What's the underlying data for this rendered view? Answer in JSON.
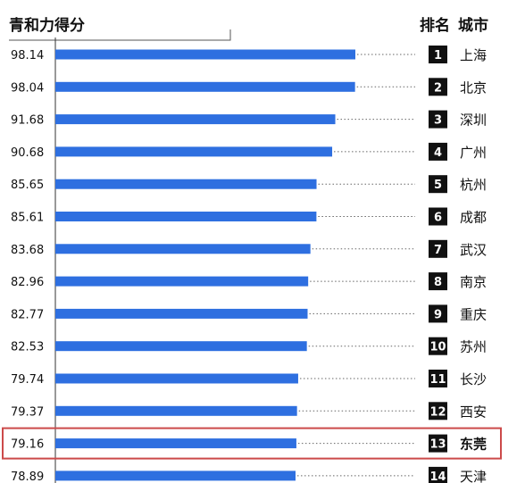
{
  "chart_data": {
    "type": "bar",
    "title": "青和力得分",
    "rank_header": "排名",
    "city_header": "城市",
    "orientation": "horizontal",
    "categories": [
      "上海",
      "北京",
      "深圳",
      "广州",
      "杭州",
      "成都",
      "武汉",
      "南京",
      "重庆",
      "苏州",
      "长沙",
      "西安",
      "东莞",
      "天津"
    ],
    "ranks": [
      "1",
      "2",
      "3",
      "4",
      "5",
      "6",
      "7",
      "8",
      "9",
      "10",
      "11",
      "12",
      "13",
      "14"
    ],
    "values": [
      98.14,
      98.04,
      91.68,
      90.68,
      85.65,
      85.61,
      83.68,
      82.96,
      82.77,
      82.53,
      79.74,
      79.37,
      79.16,
      78.89
    ],
    "value_labels": [
      "98.14",
      "98.04",
      "91.68",
      "90.68",
      "85.65",
      "85.61",
      "83.68",
      "82.96",
      "82.77",
      "82.53",
      "79.74",
      "79.37",
      "79.16",
      "78.89"
    ],
    "highlighted_category": "东莞",
    "colors": {
      "bar": "#2e6fe0",
      "highlight_box": "#cc4a4a",
      "rank_badge": "#111111",
      "text": "#111111"
    }
  }
}
